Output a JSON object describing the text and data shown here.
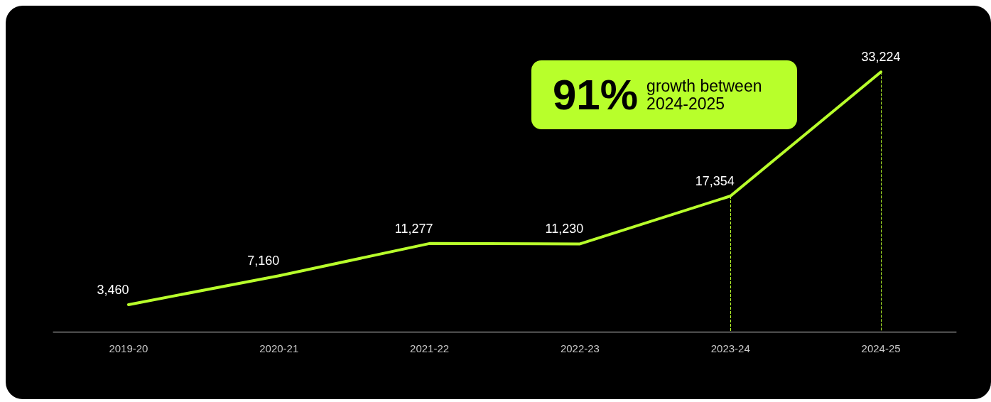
{
  "chart_data": {
    "type": "line",
    "categories": [
      "2019-20",
      "2020-21",
      "2021-22",
      "2022-23",
      "2023-24",
      "2024-25"
    ],
    "series": [
      {
        "color": "#b8ff2b",
        "values": [
          3460,
          7160,
          11277,
          11230,
          17354,
          33224
        ],
        "value_labels": [
          "3,460",
          "7,160",
          "11,277",
          "11,230",
          "17,354",
          "33,224"
        ]
      }
    ],
    "grid": false,
    "marker": "none",
    "line_style": "solid",
    "tick_labels": "x",
    "ref_lines": [
      {
        "axis": "x",
        "value": "2023-24",
        "color": "#b8ff2b",
        "line_style": "dashed"
      },
      {
        "axis": "x",
        "value": "2024-25",
        "color": "#b8ff2b",
        "line_style": "dashed"
      }
    ],
    "annotations": [
      "91%",
      "growth between 2024-2025"
    ]
  }
}
